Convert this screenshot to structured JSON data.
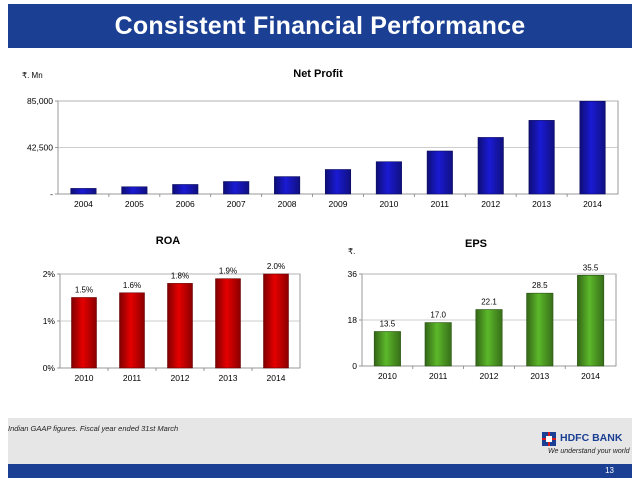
{
  "header": {
    "title": "Consistent Financial Performance"
  },
  "chart_data": [
    {
      "type": "bar",
      "title": "Net Profit",
      "unit_label": "₹. Mn",
      "categories": [
        "2004",
        "2005",
        "2006",
        "2007",
        "2008",
        "2009",
        "2010",
        "2011",
        "2012",
        "2013",
        "2014"
      ],
      "values": [
        5100,
        6600,
        8700,
        11400,
        15900,
        22400,
        29500,
        39300,
        51700,
        67300,
        84800
      ],
      "ylim": [
        0,
        85000
      ],
      "yticks": [
        0,
        42500,
        85000
      ],
      "ytick_labels": [
        "-",
        "42,500",
        "85,000"
      ],
      "grid": true,
      "bar_color": "#1a1ad4"
    },
    {
      "type": "bar",
      "title": "ROA",
      "categories": [
        "2010",
        "2011",
        "2012",
        "2013",
        "2014"
      ],
      "values": [
        1.5,
        1.6,
        1.8,
        1.9,
        2.0
      ],
      "data_labels": [
        "1.5%",
        "1.6%",
        "1.8%",
        "1.9%",
        "2.0%"
      ],
      "ylim": [
        0,
        2
      ],
      "yticks": [
        0,
        1,
        2
      ],
      "ytick_labels": [
        "0%",
        "1%",
        "2%"
      ],
      "grid": true,
      "bar_color": "#e60000"
    },
    {
      "type": "bar",
      "title": "EPS",
      "unit_label": "₹.",
      "categories": [
        "2010",
        "2011",
        "2012",
        "2013",
        "2014"
      ],
      "values": [
        13.5,
        17.0,
        22.1,
        28.5,
        35.5
      ],
      "data_labels": [
        "13.5",
        "17.0",
        "22.1",
        "28.5",
        "35.5"
      ],
      "ylim": [
        0,
        36
      ],
      "yticks": [
        0,
        18,
        36
      ],
      "ytick_labels": [
        "0",
        "18",
        "36"
      ],
      "grid": true,
      "bar_color": "#5cb82a"
    }
  ],
  "footer": {
    "note": "Indian GAAP figures. Fiscal year ended 31st March",
    "brand": "HDFC BANK",
    "tagline": "We understand your world",
    "page_number": "13"
  }
}
